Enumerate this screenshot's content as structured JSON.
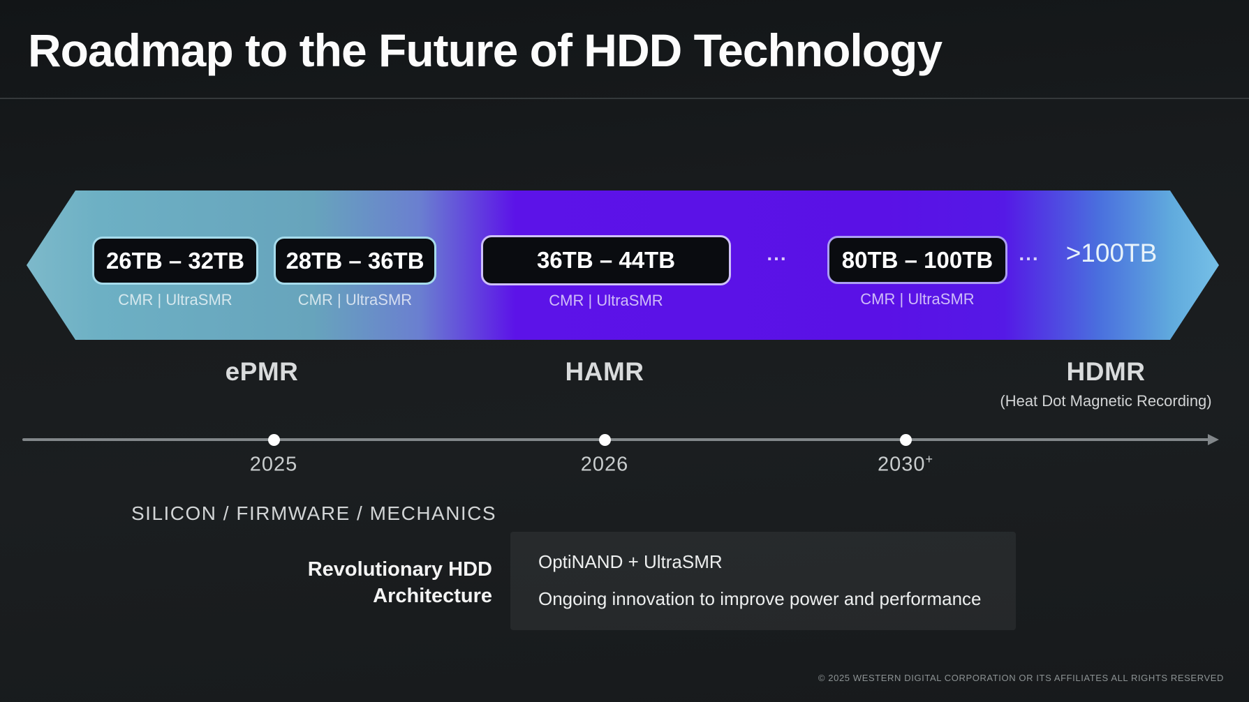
{
  "slide": {
    "title": "Roadmap to the Future of HDD Technology",
    "footer": "© 2025 WESTERN DIGITAL CORPORATION OR ITS AFFILIATES  ALL RIGHTS RESERVED"
  },
  "banner": {
    "gradient_colors": [
      "#7db9ca",
      "#67a4bc",
      "#5c13e8",
      "#5a11e6",
      "#4a70de",
      "#76c0e7"
    ],
    "capacities": [
      {
        "range": "26TB – 32TB",
        "tech": "CMR | UltraSMR",
        "border_color": "#a7dcec"
      },
      {
        "range": "28TB – 36TB",
        "tech": "CMR | UltraSMR",
        "border_color": "#a7dcec"
      },
      {
        "range": "36TB – 44TB",
        "tech": "CMR | UltraSMR",
        "border_color": "#cfc1f8"
      },
      {
        "range": "80TB – 100TB",
        "tech": "CMR | UltraSMR",
        "border_color": "#ab9ef2"
      }
    ],
    "ellipsis": "...",
    "beyond_label": ">100TB"
  },
  "technologies": [
    {
      "name": "ePMR",
      "subtitle": ""
    },
    {
      "name": "HAMR",
      "subtitle": ""
    },
    {
      "name": "HDMR",
      "subtitle": "(Heat Dot Magnetic Recording)"
    }
  ],
  "timeline": {
    "years": [
      {
        "label": "2025",
        "suffix": ""
      },
      {
        "label": "2026",
        "suffix": ""
      },
      {
        "label": "2030",
        "suffix": "+"
      }
    ]
  },
  "architecture": {
    "heading": "SILICON / FIRMWARE / MECHANICS",
    "label_line1": "Revolutionary HDD",
    "label_line2": "Architecture",
    "detail_line1": "OptiNAND + UltraSMR",
    "detail_line2": "Ongoing innovation to improve power and performance"
  }
}
